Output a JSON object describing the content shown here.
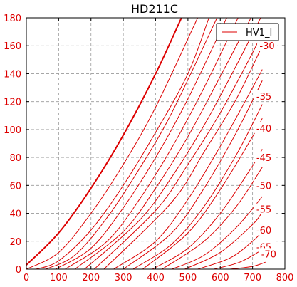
{
  "chart_data": {
    "type": "line",
    "title": "HD211C",
    "xlabel": "",
    "ylabel": "",
    "xlim": [
      0,
      800
    ],
    "ylim": [
      0,
      180
    ],
    "x_ticks": [
      "0",
      "100",
      "200",
      "300",
      "400",
      "500",
      "600",
      "700",
      "800"
    ],
    "y_ticks": [
      "0",
      "20",
      "40",
      "60",
      "80",
      "100",
      "120",
      "140",
      "160",
      "180"
    ],
    "grid": true,
    "legend": {
      "label": "HV1_I",
      "placement": "top-right"
    },
    "color": "#dd0000",
    "series": [
      {
        "label": "",
        "bold": true,
        "points": [
          [
            0,
            3
          ],
          [
            100,
            26
          ],
          [
            200,
            58
          ],
          [
            300,
            96
          ],
          [
            400,
            140
          ],
          [
            480,
            180
          ]
        ]
      },
      {
        "label": "",
        "points": [
          [
            0,
            0
          ],
          [
            100,
            12
          ],
          [
            200,
            40
          ],
          [
            300,
            75
          ],
          [
            400,
            116
          ],
          [
            530,
            180
          ]
        ]
      },
      {
        "label": "",
        "points": [
          [
            30,
            0
          ],
          [
            100,
            6
          ],
          [
            200,
            28
          ],
          [
            300,
            60
          ],
          [
            400,
            98
          ],
          [
            500,
            140
          ],
          [
            565,
            180
          ]
        ]
      },
      {
        "label": "",
        "points": [
          [
            60,
            0
          ],
          [
            150,
            10
          ],
          [
            250,
            37
          ],
          [
            350,
            72
          ],
          [
            450,
            112
          ],
          [
            590,
            180
          ]
        ]
      },
      {
        "label": "",
        "points": [
          [
            90,
            0
          ],
          [
            200,
            15
          ],
          [
            300,
            44
          ],
          [
            400,
            80
          ],
          [
            500,
            122
          ],
          [
            620,
            180
          ]
        ]
      },
      {
        "label": "",
        "points": [
          [
            120,
            0
          ],
          [
            250,
            20
          ],
          [
            350,
            50
          ],
          [
            450,
            87
          ],
          [
            550,
            130
          ],
          [
            655,
            180
          ]
        ]
      },
      {
        "label": "-30",
        "points": [
          [
            150,
            0
          ],
          [
            300,
            27
          ],
          [
            400,
            58
          ],
          [
            500,
            95
          ],
          [
            600,
            138
          ],
          [
            695,
            180
          ]
        ]
      },
      {
        "label": "",
        "points": [
          [
            180,
            0
          ],
          [
            350,
            35
          ],
          [
            450,
            66
          ],
          [
            550,
            103
          ],
          [
            650,
            146
          ],
          [
            725,
            180
          ]
        ]
      },
      {
        "label": "-35",
        "points": [
          [
            210,
            0
          ],
          [
            400,
            42
          ],
          [
            500,
            75
          ],
          [
            600,
            112
          ],
          [
            700,
            155
          ],
          [
            730,
            170
          ]
        ]
      },
      {
        "label": "",
        "points": [
          [
            240,
            0
          ],
          [
            450,
            48
          ],
          [
            550,
            84
          ],
          [
            650,
            122
          ],
          [
            730,
            160
          ]
        ]
      },
      {
        "label": "-40",
        "points": [
          [
            270,
            0
          ],
          [
            400,
            20
          ],
          [
            500,
            50
          ],
          [
            600,
            88
          ],
          [
            700,
            130
          ],
          [
            730,
            143
          ]
        ]
      },
      {
        "label": "",
        "points": [
          [
            300,
            0
          ],
          [
            450,
            26
          ],
          [
            550,
            58
          ],
          [
            650,
            98
          ],
          [
            730,
            135
          ]
        ]
      },
      {
        "label": "-45",
        "points": [
          [
            330,
            0
          ],
          [
            450,
            18
          ],
          [
            550,
            45
          ],
          [
            650,
            82
          ],
          [
            730,
            118
          ]
        ]
      },
      {
        "label": "",
        "points": [
          [
            360,
            0
          ],
          [
            500,
            26
          ],
          [
            600,
            57
          ],
          [
            700,
            95
          ],
          [
            730,
            108
          ]
        ]
      },
      {
        "label": "-50",
        "points": [
          [
            390,
            0
          ],
          [
            500,
            15
          ],
          [
            600,
            40
          ],
          [
            700,
            74
          ],
          [
            730,
            86
          ]
        ]
      },
      {
        "label": "",
        "points": [
          [
            420,
            0
          ],
          [
            550,
            20
          ],
          [
            650,
            45
          ],
          [
            730,
            73
          ]
        ]
      },
      {
        "label": "-55",
        "points": [
          [
            450,
            0
          ],
          [
            550,
            10
          ],
          [
            650,
            30
          ],
          [
            730,
            52
          ]
        ]
      },
      {
        "label": "",
        "points": [
          [
            490,
            0
          ],
          [
            600,
            12
          ],
          [
            700,
            32
          ],
          [
            730,
            41
          ]
        ]
      },
      {
        "label": "-60",
        "points": [
          [
            530,
            0
          ],
          [
            630,
            8
          ],
          [
            700,
            20
          ],
          [
            730,
            27
          ]
        ]
      },
      {
        "label": "-65",
        "points": [
          [
            580,
            0
          ],
          [
            660,
            5
          ],
          [
            730,
            14
          ]
        ]
      },
      {
        "label": "-70",
        "points": [
          [
            630,
            0
          ],
          [
            700,
            2
          ],
          [
            740,
            5
          ]
        ]
      }
    ],
    "curve_labels": [
      {
        "text": "-30",
        "x": 745,
        "y": 159
      },
      {
        "text": "-35",
        "x": 735,
        "y": 123
      },
      {
        "text": "-40",
        "x": 735,
        "y": 100
      },
      {
        "text": "-45",
        "x": 735,
        "y": 79
      },
      {
        "text": "-50",
        "x": 735,
        "y": 59
      },
      {
        "text": "-55",
        "x": 735,
        "y": 42
      },
      {
        "text": "-60",
        "x": 735,
        "y": 27
      },
      {
        "text": "-65",
        "x": 735,
        "y": 15
      },
      {
        "text": "-70",
        "x": 750,
        "y": 10
      }
    ]
  }
}
